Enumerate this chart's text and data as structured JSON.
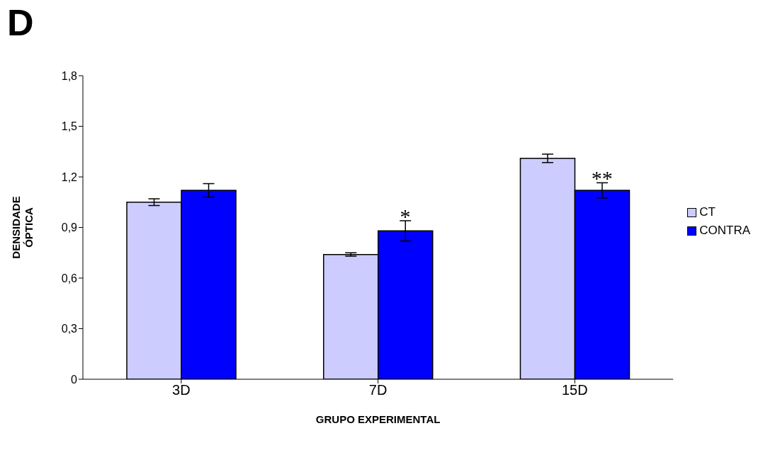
{
  "chart_data": {
    "type": "bar",
    "title": "D",
    "xlabel": "GRUPO EXPERIMENTAL",
    "ylabel": "DENSIDADE ÓPTICA",
    "categories": [
      "3D",
      "7D",
      "15D"
    ],
    "series": [
      {
        "name": "CT",
        "color": "#ccccff",
        "values": [
          1.05,
          0.74,
          1.31
        ],
        "errors": [
          0.02,
          0.01,
          0.025
        ]
      },
      {
        "name": "CONTRA",
        "color": "#0000ff",
        "values": [
          1.12,
          0.88,
          1.12
        ],
        "errors": [
          0.04,
          0.06,
          0.045
        ]
      }
    ],
    "ylim": [
      0,
      1.8
    ],
    "yticks": [
      {
        "value": 0,
        "label": "0"
      },
      {
        "value": 0.3,
        "label": "0,3"
      },
      {
        "value": 0.6,
        "label": "0,6"
      },
      {
        "value": 0.9,
        "label": "0,9"
      },
      {
        "value": 1.2,
        "label": "1,2"
      },
      {
        "value": 1.5,
        "label": "1,5"
      },
      {
        "value": 1.8,
        "label": "1,8"
      }
    ],
    "grid": false,
    "legend": "right",
    "annotations": [
      {
        "text": "*",
        "x": "7D",
        "y": 0.88
      },
      {
        "text": "**",
        "x": "15D",
        "y": 1.12
      }
    ]
  }
}
